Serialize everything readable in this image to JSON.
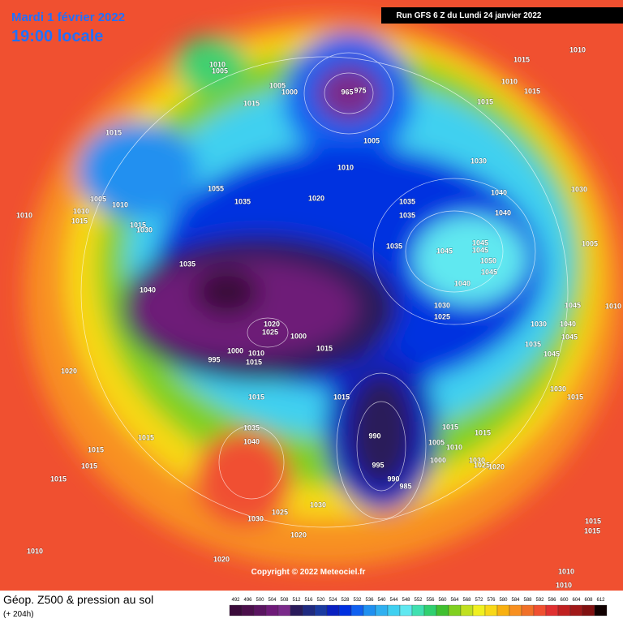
{
  "header": {
    "date": "Mardi 1 février 2022",
    "time": "19:00 locale",
    "run": "Run GFS 6 Z du Lundi 24 janvier 2022"
  },
  "footer": {
    "title": "Géop. Z500 & pression au sol",
    "subtitle": "(+ 204h)",
    "copyright": "Copyright © 2022 Meteociel.fr"
  },
  "scale": {
    "values": [
      492,
      496,
      500,
      504,
      508,
      512,
      516,
      520,
      524,
      528,
      532,
      536,
      540,
      544,
      548,
      552,
      556,
      560,
      564,
      568,
      572,
      576,
      580,
      584,
      588,
      592,
      596,
      600,
      604,
      608,
      612
    ],
    "colors": [
      "#3a0a3a",
      "#4b0f4b",
      "#5a1460",
      "#6e1a78",
      "#7a2a8a",
      "#2a1a5a",
      "#1f2a80",
      "#1a3aa0",
      "#0a20c0",
      "#0030e0",
      "#1060f0",
      "#2090f0",
      "#30b0f0",
      "#40d0f0",
      "#60e8f0",
      "#40e0b0",
      "#30d070",
      "#40c030",
      "#80d020",
      "#c0e020",
      "#f0f020",
      "#f8d818",
      "#f8b010",
      "#f89020",
      "#f07028",
      "#f05030",
      "#e03030",
      "#c02020",
      "#a01818",
      "#801010",
      "#100000"
    ]
  },
  "isobar_labels": [
    "1010",
    "1005",
    "1015",
    "1005",
    "1000",
    "1010",
    "1020",
    "1035",
    "1055",
    "1015",
    "1005",
    "1010",
    "1010",
    "1015",
    "1010",
    "1015",
    "1030",
    "1035",
    "1040",
    "1020",
    "1015",
    "1015",
    "1015",
    "1015",
    "1010",
    "1035",
    "1040",
    "1030",
    "1025",
    "1020",
    "1030",
    "1020",
    "1015",
    "1015",
    "995",
    "1000",
    "1010",
    "1015",
    "1020",
    "1025",
    "1000",
    "1015",
    "990",
    "995",
    "990",
    "985",
    "1000",
    "1005",
    "1010",
    "1015",
    "1015",
    "1030",
    "1025",
    "1020",
    "1030",
    "1025",
    "1035",
    "1045",
    "1040",
    "1045",
    "1045",
    "1050",
    "1045",
    "1040",
    "1040",
    "1030",
    "1035",
    "1035",
    "1005",
    "1015",
    "1010",
    "1015",
    "1015",
    "1010",
    "1030",
    "1005",
    "1045",
    "1040",
    "1045",
    "1030",
    "1035",
    "1045",
    "1030",
    "1015",
    "1015",
    "1015",
    "1010",
    "1010",
    "965",
    "975",
    "1010"
  ]
}
